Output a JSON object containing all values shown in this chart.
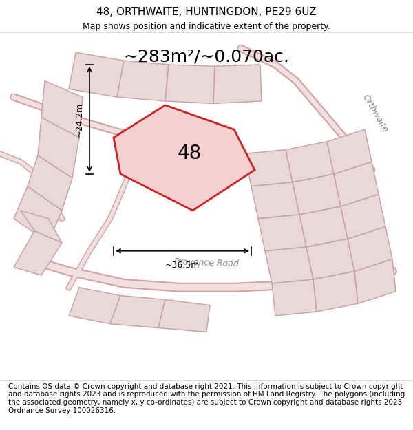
{
  "title_line1": "48, ORTHWAITE, HUNTINGDON, PE29 6UZ",
  "title_line2": "Map shows position and indicative extent of the property.",
  "area_text": "~283m²/~0.070ac.",
  "property_number": "48",
  "dim_width": "~36.5m",
  "dim_height": "~24.2m",
  "footer_text": "Contains OS data © Crown copyright and database right 2021. This information is subject to Crown copyright and database rights 2023 and is reproduced with the permission of HM Land Registry. The polygons (including the associated geometry, namely x, y co-ordinates) are subject to Crown copyright and database rights 2023 Ordnance Survey 100026316.",
  "bg_color": "#f5f0f0",
  "map_bg": "#f7f2f2",
  "road_color_light": "#e8c8c8",
  "road_color_dark": "#d4a0a0",
  "property_fill": "#f5d0d0",
  "property_edge": "#cc2222",
  "other_fill": "#e8d8d8",
  "other_edge": "#c8a0a0",
  "road_label": "Provence Road",
  "road_label2": "Orthwaite",
  "title_fontsize": 11,
  "subtitle_fontsize": 9,
  "area_fontsize": 18,
  "footer_fontsize": 7.5
}
